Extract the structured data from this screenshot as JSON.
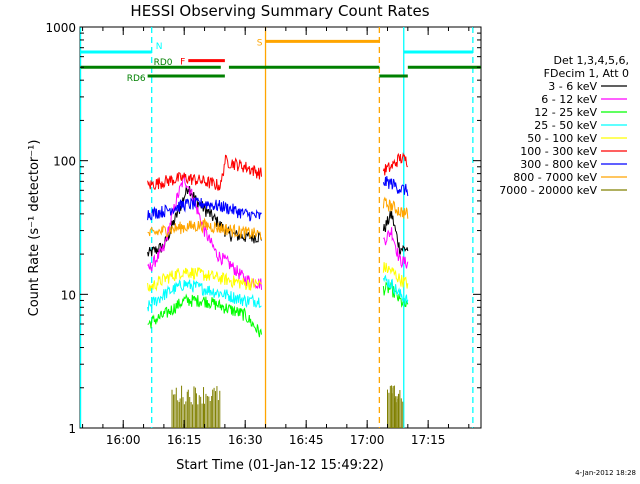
{
  "chart_data": {
    "type": "line",
    "title": "HESSI Observing Summary Count Rates",
    "xlabel": "Start Time (01-Jan-12 15:49:22)",
    "ylabel": "Count Rate (s⁻¹ detector⁻¹)",
    "y_scale": "log",
    "ylim": [
      1,
      1000
    ],
    "x_units": "UT (HH:MM, 01-Jan-12)",
    "xlim": [
      "15:49:22",
      "17:28:00"
    ],
    "x_ticks": [
      "16:00",
      "16:15",
      "16:30",
      "16:45",
      "17:00",
      "17:15"
    ],
    "y_ticks": [
      "1",
      "10",
      "100",
      "1000"
    ],
    "footer_date": "4-Jan-2012 18:28",
    "legend": {
      "placement": "right",
      "header": [
        "Det 1,3,4,5,6,",
        "FDecim 1, Att 0"
      ]
    },
    "series": [
      {
        "name": "3 - 6 keV",
        "color": "#000000",
        "x": [
          "16:06",
          "16:10",
          "16:14",
          "16:16",
          "16:18",
          "16:22",
          "16:26",
          "16:30",
          "16:34",
          "17:04",
          "17:06",
          "17:08",
          "17:10"
        ],
        "values": [
          20,
          23,
          45,
          65,
          50,
          38,
          28,
          27,
          27,
          30,
          40,
          22,
          22
        ]
      },
      {
        "name": "6 - 12 keV",
        "color": "#ff00ff",
        "x": [
          "16:06",
          "16:10",
          "16:13",
          "16:15",
          "16:17",
          "16:20",
          "16:23",
          "16:26",
          "16:30",
          "16:34",
          "17:04",
          "17:06",
          "17:08",
          "17:10"
        ],
        "values": [
          15,
          22,
          50,
          75,
          55,
          30,
          20,
          17,
          13,
          12,
          25,
          30,
          18,
          17
        ]
      },
      {
        "name": "12 - 25 keV",
        "color": "#00ff00",
        "x": [
          "16:06",
          "16:10",
          "16:15",
          "16:20",
          "16:25",
          "16:30",
          "16:34",
          "17:04",
          "17:06",
          "17:08",
          "17:10"
        ],
        "values": [
          6,
          7,
          9,
          9,
          8,
          7,
          5,
          11,
          11,
          9,
          8
        ]
      },
      {
        "name": "25 - 50 keV",
        "color": "#00ffff",
        "x": [
          "16:06",
          "16:10",
          "16:15",
          "16:20",
          "16:25",
          "16:30",
          "16:34",
          "17:04",
          "17:06",
          "17:08",
          "17:10"
        ],
        "values": [
          8,
          10,
          12,
          11,
          10,
          9,
          9,
          13,
          12,
          10,
          9
        ]
      },
      {
        "name": "50 - 100 keV",
        "color": "#ffff00",
        "x": [
          "16:06",
          "16:10",
          "16:15",
          "16:20",
          "16:25",
          "16:30",
          "16:34",
          "17:04",
          "17:06",
          "17:08",
          "17:10"
        ],
        "values": [
          11,
          13,
          15,
          14,
          13,
          12,
          12,
          16,
          15,
          13,
          12
        ]
      },
      {
        "name": "100 - 300 keV",
        "color": "#ff0000",
        "x": [
          "16:06",
          "16:10",
          "16:15",
          "16:20",
          "16:24",
          "16:25",
          "16:30",
          "16:34",
          "17:04",
          "17:06",
          "17:08",
          "17:10"
        ],
        "values": [
          65,
          70,
          75,
          70,
          65,
          100,
          90,
          80,
          85,
          90,
          105,
          100
        ]
      },
      {
        "name": "300 - 800 keV",
        "color": "#0000ff",
        "x": [
          "16:06",
          "16:10",
          "16:15",
          "16:20",
          "16:25",
          "16:30",
          "16:34",
          "17:04",
          "17:06",
          "17:08",
          "17:10"
        ],
        "values": [
          40,
          42,
          47,
          48,
          45,
          40,
          38,
          70,
          68,
          62,
          60
        ]
      },
      {
        "name": "800 - 7000 keV",
        "color": "#ffa500",
        "x": [
          "16:06",
          "16:10",
          "16:15",
          "16:20",
          "16:25",
          "16:30",
          "16:34",
          "17:04",
          "17:06",
          "17:08",
          "17:10"
        ],
        "values": [
          28,
          30,
          32,
          33,
          31,
          29,
          28,
          48,
          46,
          42,
          40
        ]
      },
      {
        "name": "7000 - 20000 keV",
        "color": "#808000",
        "x": [
          "16:12",
          "16:14",
          "16:16",
          "16:18",
          "16:20",
          "16:22",
          "17:05",
          "17:06",
          "17:07"
        ],
        "values": [
          1.5,
          1.5,
          1.5,
          1.5,
          1.5,
          1.5,
          1.5,
          1.5,
          1.5
        ]
      }
    ],
    "vertical_lines": [
      {
        "x": "15:49:30",
        "color": "#00ffff",
        "style": "solid"
      },
      {
        "x": "16:07",
        "color": "#00ffff",
        "style": "dashed"
      },
      {
        "x": "16:35",
        "color": "#ffa500",
        "style": "solid"
      },
      {
        "x": "17:03",
        "color": "#ffa500",
        "style": "dashed"
      },
      {
        "x": "17:09",
        "color": "#00ffff",
        "style": "solid"
      },
      {
        "x": "17:26",
        "color": "#00ffff",
        "style": "dashed"
      }
    ],
    "flag_bars": [
      {
        "label": "N",
        "color": "#00ffff",
        "level": 650,
        "segments": [
          [
            "15:49:30",
            "16:07"
          ],
          [
            "17:09",
            "17:26"
          ]
        ]
      },
      {
        "label": "F",
        "color": "#ff0000",
        "level": 560,
        "segments": [
          [
            "16:16",
            "16:25"
          ]
        ]
      },
      {
        "label": "RD0",
        "color": "#008000",
        "level": 500,
        "segments": [
          [
            "15:49:30",
            "16:24"
          ],
          [
            "16:26",
            "17:03"
          ],
          [
            "17:10",
            "17:28"
          ]
        ]
      },
      {
        "label": "RD6",
        "color": "#008000",
        "level": 430,
        "segments": [
          [
            "16:06",
            "16:25"
          ],
          [
            "17:03",
            "17:10"
          ]
        ]
      },
      {
        "label": "S",
        "color": "#ffa500",
        "level": 780,
        "segments": [
          [
            "16:35",
            "17:03"
          ]
        ]
      }
    ]
  }
}
